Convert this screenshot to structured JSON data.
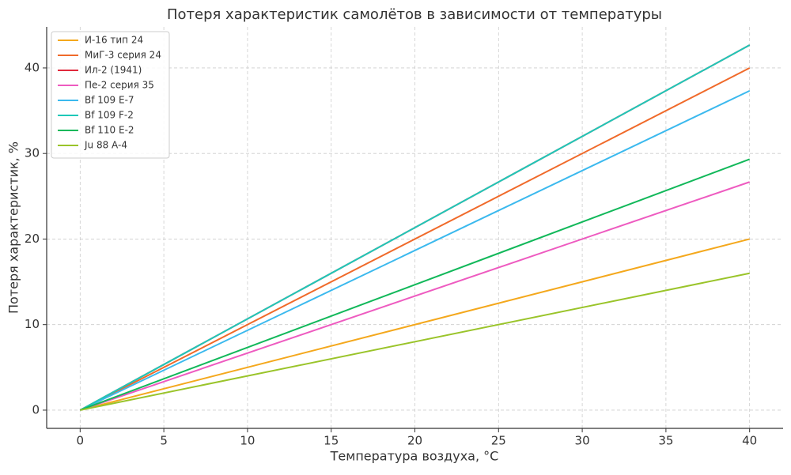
{
  "chart_data": {
    "type": "line",
    "title": "Потеря характеристик самолётов в зависимости от температуры",
    "x_label": "Температура воздуха, °C",
    "y_label": "Потеря характеристик, %",
    "x": [
      0,
      40
    ],
    "series": [
      {
        "name": "И-16 тип 24",
        "color": "#f4a81d",
        "values": [
          0,
          20
        ]
      },
      {
        "name": "МиГ-3 серия 24",
        "color": "#f06a2a",
        "values": [
          0,
          40
        ]
      },
      {
        "name": "Ил-2 (1941)",
        "color": "#e0293c",
        "values": [
          0,
          42.67
        ]
      },
      {
        "name": "Пе-2 серия 35",
        "color": "#ee5bc0",
        "values": [
          0,
          26.67
        ]
      },
      {
        "name": "Bf 109 E-7",
        "color": "#3bb9ee",
        "values": [
          0,
          37.33
        ]
      },
      {
        "name": "Bf 109 F-2",
        "color": "#1ec8b8",
        "values": [
          0,
          42.67
        ]
      },
      {
        "name": "Bf 110 E-2",
        "color": "#12b85a",
        "values": [
          0,
          29.33
        ]
      },
      {
        "name": "Ju 88 A-4",
        "color": "#9ac42a",
        "values": [
          0,
          16
        ]
      }
    ],
    "xlim": [
      -2,
      42
    ],
    "ylim": [
      -2.13,
      44.8
    ],
    "xticks": [
      0,
      5,
      10,
      15,
      20,
      25,
      30,
      35,
      40
    ],
    "yticks": [
      0,
      10,
      20,
      30,
      40
    ],
    "grid": true,
    "legend": "upper left"
  }
}
